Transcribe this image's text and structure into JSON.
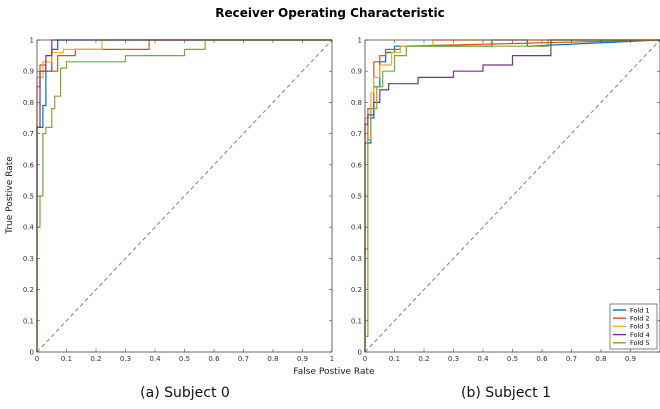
{
  "figure": {
    "title": "Receiver Operating Characteristic",
    "xlabel": "False Postive Rate",
    "ylabel": "True Postive Rate",
    "captions": [
      "(a) Subject 0",
      "(b) Subject 1"
    ]
  },
  "colors": {
    "fold1": "#0072BD",
    "fold2": "#D95319",
    "fold3": "#EDB120",
    "fold4": "#7E2F8E",
    "fold5": "#77AC30",
    "diagonal": "#808080"
  },
  "chart_data": [
    {
      "type": "line",
      "caption": "(a) Subject 0",
      "xlim": [
        0,
        1
      ],
      "ylim": [
        0,
        1
      ],
      "xticks": [
        "0",
        "0.1",
        "0.2",
        "0.3",
        "0.4",
        "0.5",
        "0.6",
        "0.7",
        "0.8",
        "0.9",
        "1"
      ],
      "yticks": [
        "0",
        "0.1",
        "0.2",
        "0.3",
        "0.4",
        "0.5",
        "0.6",
        "0.7",
        "0.8",
        "0.9",
        "1"
      ],
      "grid": false,
      "series": [
        {
          "x": [
            0,
            0,
            0.02,
            0.02,
            0.03,
            0.03,
            0.05,
            0.05,
            0.07,
            0.07,
            1
          ],
          "y": [
            0,
            0.72,
            0.72,
            0.79,
            0.79,
            0.9,
            0.9,
            0.97,
            0.97,
            1,
            1
          ]
        },
        {
          "x": [
            0,
            0,
            0.01,
            0.01,
            0.03,
            0.03,
            0.07,
            0.07,
            0.13,
            0.13,
            0.38,
            0.38,
            1
          ],
          "y": [
            0,
            0.85,
            0.85,
            0.92,
            0.92,
            0.9,
            0.9,
            0.95,
            0.95,
            0.97,
            0.97,
            1,
            1
          ]
        },
        {
          "x": [
            0,
            0,
            0.02,
            0.02,
            0.05,
            0.05,
            0.09,
            0.09,
            0.22,
            0.22,
            1
          ],
          "y": [
            0,
            0.88,
            0.88,
            0.93,
            0.93,
            0.96,
            0.96,
            0.97,
            0.97,
            1,
            1
          ]
        },
        {
          "x": [
            0,
            0,
            0.01,
            0.01,
            0.03,
            0.03,
            0.05,
            0.05,
            1
          ],
          "y": [
            0,
            0.72,
            0.72,
            0.9,
            0.9,
            0.95,
            0.95,
            1,
            1
          ]
        },
        {
          "x": [
            0,
            0,
            0.01,
            0.01,
            0.02,
            0.02,
            0.03,
            0.03,
            0.05,
            0.05,
            0.06,
            0.06,
            0.08,
            0.08,
            0.1,
            0.1,
            0.3,
            0.3,
            0.5,
            0.5,
            0.57,
            0.57,
            1
          ],
          "y": [
            0,
            0.4,
            0.4,
            0.5,
            0.5,
            0.7,
            0.7,
            0.72,
            0.72,
            0.78,
            0.78,
            0.82,
            0.82,
            0.91,
            0.91,
            0.93,
            0.93,
            0.95,
            0.95,
            0.97,
            0.97,
            1,
            1
          ]
        }
      ]
    },
    {
      "type": "line",
      "caption": "(b) Subject 1",
      "xlim": [
        0,
        1
      ],
      "ylim": [
        0,
        1
      ],
      "xticks": [
        "0",
        "0.1",
        "0.2",
        "0.3",
        "0.4",
        "0.5",
        "0.6",
        "0.7",
        "0.8",
        "0.9"
      ],
      "yticks": [
        "0",
        "0.1",
        "0.2",
        "0.3",
        "0.4",
        "0.5",
        "0.6",
        "0.7",
        "0.8",
        "0.9",
        "1"
      ],
      "grid": false,
      "legend_position": "bottom-right",
      "series": [
        {
          "name": "Fold 1",
          "x": [
            0,
            0,
            0.02,
            0.02,
            0.03,
            0.03,
            0.05,
            0.05,
            0.07,
            0.07,
            0.1,
            0.1,
            0.43,
            0.43,
            0.55,
            0.55,
            1
          ],
          "y": [
            0,
            0.67,
            0.67,
            0.75,
            0.75,
            0.85,
            0.85,
            0.93,
            0.93,
            0.96,
            0.96,
            0.98,
            0.98,
            1,
            1,
            0.98,
            1
          ]
        },
        {
          "name": "Fold 2",
          "x": [
            0,
            0,
            0.01,
            0.01,
            0.03,
            0.03,
            0.05,
            0.05,
            0.07,
            0.07,
            0.12,
            0.12,
            1
          ],
          "y": [
            0,
            0.33,
            0.33,
            0.78,
            0.78,
            0.93,
            0.93,
            0.95,
            0.95,
            0.97,
            0.97,
            0.98,
            1
          ]
        },
        {
          "name": "Fold 3",
          "x": [
            0,
            0,
            0.02,
            0.02,
            0.03,
            0.03,
            0.05,
            0.05,
            0.09,
            0.09,
            0.12,
            0.12,
            0.23,
            0.23,
            1
          ],
          "y": [
            0,
            0.75,
            0.75,
            0.83,
            0.83,
            0.88,
            0.88,
            0.92,
            0.92,
            0.96,
            0.96,
            0.98,
            0.98,
            1,
            1
          ]
        },
        {
          "name": "Fold 4",
          "x": [
            0,
            0,
            0.01,
            0.01,
            0.03,
            0.03,
            0.05,
            0.05,
            0.08,
            0.08,
            0.18,
            0.18,
            0.3,
            0.3,
            0.4,
            0.4,
            0.5,
            0.5,
            0.63,
            0.63,
            1
          ],
          "y": [
            0,
            0.73,
            0.73,
            0.76,
            0.76,
            0.8,
            0.8,
            0.84,
            0.84,
            0.86,
            0.86,
            0.88,
            0.88,
            0.9,
            0.9,
            0.92,
            0.92,
            0.95,
            0.95,
            1,
            1
          ]
        },
        {
          "name": "Fold 5",
          "x": [
            0,
            0,
            0.01,
            0.01,
            0.02,
            0.02,
            0.04,
            0.04,
            0.06,
            0.06,
            0.1,
            0.1,
            0.14,
            0.14,
            0.2,
            0.2,
            0.62,
            0.62,
            1
          ],
          "y": [
            0,
            0.05,
            0.05,
            0.68,
            0.68,
            0.78,
            0.78,
            0.85,
            0.85,
            0.9,
            0.9,
            0.95,
            0.95,
            0.98,
            0.98,
            0.98,
            0.98,
            1,
            1
          ]
        }
      ]
    }
  ]
}
